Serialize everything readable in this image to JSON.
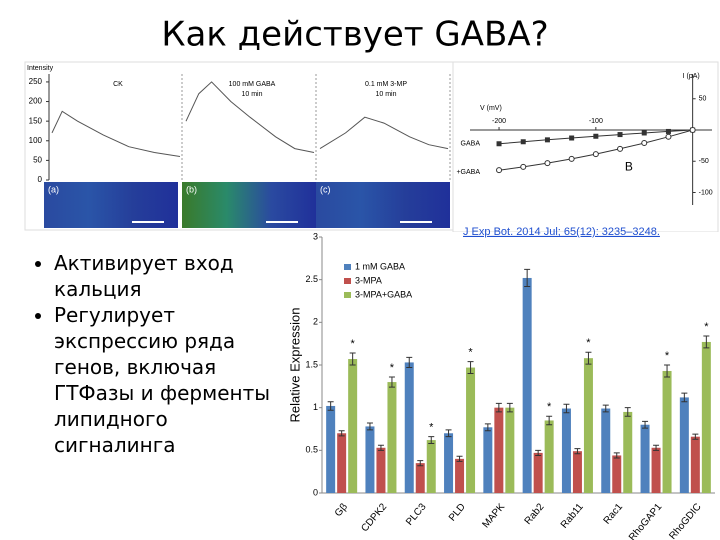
{
  "title": "Как действует GABA?",
  "bullets": [
    "Активирует вход кальция",
    "Регулирует экспрессию ряда генов, включая ГТФазы и ферменты липидного сигналинга"
  ],
  "citation": "J Exp Bot. 2014 Jul; 65(12): 3235–3248.",
  "figure_a": {
    "ylabel": "Intensity",
    "yticks": [
      0,
      50,
      100,
      150,
      200,
      250
    ],
    "ylim": [
      0,
      260
    ],
    "panels": [
      {
        "label": "(a)",
        "condition": "CK"
      },
      {
        "label": "(b)",
        "condition": "100 mM GABA",
        "time": "10 min"
      },
      {
        "label": "(c)",
        "condition": "0.1 mM 3-MP",
        "time": "10 min"
      }
    ]
  },
  "figure_b": {
    "xlabel": "V (mV)",
    "ylabel": "I (pA)",
    "xticks": [
      -200,
      -100
    ],
    "yticks": [
      50,
      -50,
      -100
    ],
    "xlim": [
      -230,
      20
    ],
    "ylim": [
      -120,
      80
    ],
    "series": [
      "GABA",
      "+GABA"
    ],
    "label": "B"
  },
  "chart_data": {
    "type": "bar",
    "categories": [
      "Gβ",
      "CDPK2",
      "PLC3",
      "PLD",
      "MAPK",
      "Rab2",
      "Rab11",
      "Rac1",
      "RhoGAP1",
      "RhoGDIC"
    ],
    "series": [
      {
        "name": "1 mM GABA",
        "color": "#4f81bd",
        "values": [
          1.02,
          0.78,
          1.53,
          0.7,
          0.77,
          2.52,
          0.99,
          0.99,
          0.8,
          1.12
        ],
        "errors": [
          0.05,
          0.04,
          0.06,
          0.04,
          0.04,
          0.1,
          0.05,
          0.04,
          0.04,
          0.05
        ]
      },
      {
        "name": "3-MPA",
        "color": "#c0504d",
        "values": [
          0.7,
          0.53,
          0.35,
          0.4,
          1.0,
          0.47,
          0.49,
          0.44,
          0.53,
          0.66
        ],
        "errors": [
          0.03,
          0.03,
          0.03,
          0.03,
          0.05,
          0.03,
          0.03,
          0.03,
          0.03,
          0.03
        ]
      },
      {
        "name": "3-MPA+GABA",
        "color": "#9bbb59",
        "values": [
          1.57,
          1.3,
          0.62,
          1.47,
          1.0,
          0.85,
          1.58,
          0.95,
          1.43,
          1.77
        ],
        "errors": [
          0.07,
          0.06,
          0.04,
          0.07,
          0.05,
          0.05,
          0.07,
          0.05,
          0.07,
          0.07
        ]
      }
    ],
    "annotations": [
      {
        "text": "*",
        "category": "Gβ",
        "series": "3-MPA+GABA"
      },
      {
        "text": "*",
        "category": "CDPK2",
        "series": "3-MPA+GABA"
      },
      {
        "text": "*",
        "category": "PLC3",
        "series": "3-MPA+GABA"
      },
      {
        "text": "*",
        "category": "PLD",
        "series": "3-MPA+GABA"
      },
      {
        "text": "*",
        "category": "Rab2",
        "series": "3-MPA+GABA"
      },
      {
        "text": "*",
        "category": "Rab11",
        "series": "3-MPA+GABA"
      },
      {
        "text": "*",
        "category": "RhoGAP1",
        "series": "3-MPA+GABA"
      },
      {
        "text": "*",
        "category": "RhoGDIC",
        "series": "3-MPA+GABA"
      }
    ],
    "ylabel": "Relative Expression",
    "ylim": [
      0,
      3
    ],
    "yticks": [
      0,
      0.5,
      1,
      1.5,
      2,
      2.5,
      3
    ],
    "legend": "top-left"
  }
}
